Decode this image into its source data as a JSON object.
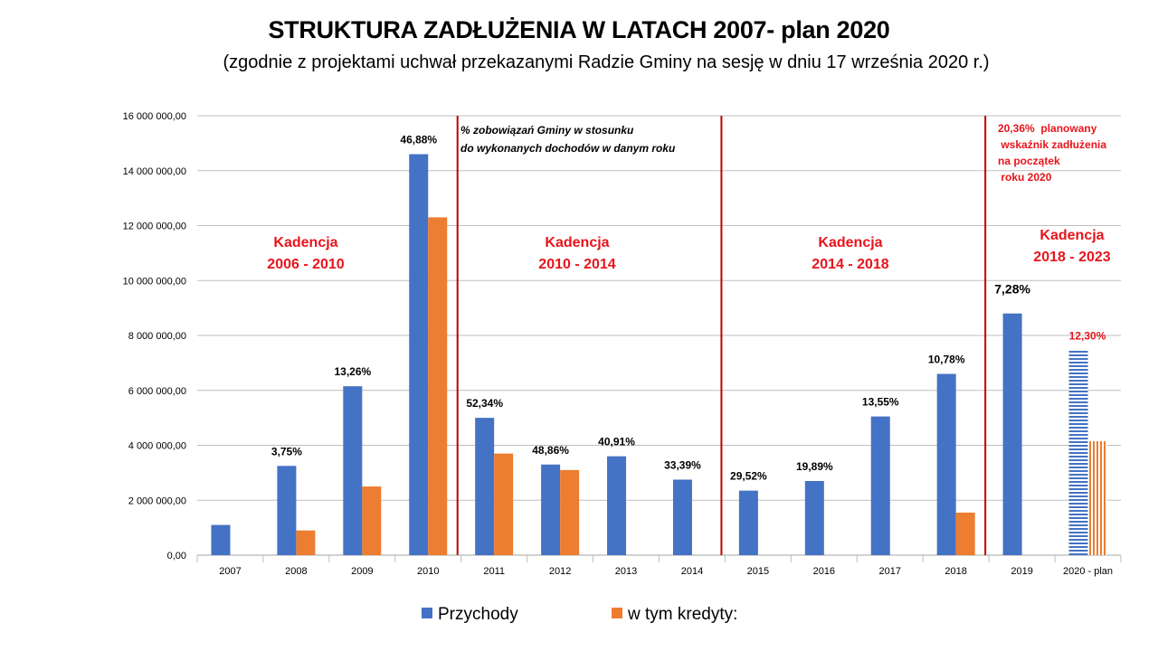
{
  "chart_data": {
    "type": "bar",
    "title": "STRUKTURA ZADŁUŻENIA W LATACH 2007- plan 2020",
    "subtitle": "(zgodnie z projektami uchwał przekazanymi Radzie Gminy na sesję w dniu 17 września 2020 r.)",
    "categories": [
      "2007",
      "2008",
      "2009",
      "2010",
      "2011",
      "2012",
      "2013",
      "2014",
      "2015",
      "2016",
      "2017",
      "2018",
      "2019",
      "2020 - plan"
    ],
    "series": [
      {
        "name": "Przychody",
        "color": "#4472c4",
        "values": [
          1100000,
          3250000,
          6150000,
          14600000,
          5000000,
          3300000,
          3600000,
          2750000,
          2350000,
          2700000,
          5050000,
          6600000,
          8800000,
          7450000
        ]
      },
      {
        "name": "w tym kredyty:",
        "color": "#ed7d31",
        "values": [
          0,
          900000,
          2500000,
          12300000,
          3700000,
          3100000,
          0,
          0,
          0,
          0,
          0,
          1550000,
          0,
          4150000
        ]
      }
    ],
    "data_labels": [
      "",
      "3,75%",
      "13,26%",
      "46,88%",
      "52,34%",
      "48,86%",
      "40,91%",
      "33,39%",
      "29,52%",
      "19,89%",
      "13,55%",
      "10,78%",
      "7,28%",
      "12,30%"
    ],
    "y_ticks": [
      "0,00",
      "2 000 000,00",
      "4 000 000,00",
      "6 000 000,00",
      "8 000 000,00",
      "10 000 000,00",
      "12 000 000,00",
      "14 000 000,00",
      "16 000 000,00"
    ],
    "ylim": [
      0,
      16000000
    ],
    "grid": true,
    "legend": "bottom",
    "dividers_after": [
      "2010",
      "2014",
      "2018"
    ],
    "period_labels": [
      {
        "line1": "Kadencja",
        "line2": "2006 - 2010"
      },
      {
        "line1": "Kadencja",
        "line2": "2010 - 2014"
      },
      {
        "line1": "Kadencja",
        "line2": "2014 - 2018"
      },
      {
        "line1": "Kadencja",
        "line2": "2018 - 2023"
      }
    ],
    "note_percent": [
      "%  zobowiązań  Gminy w stosunku",
      " do wykonanych dochodów   w danym roku"
    ],
    "note_plan": [
      "20,36%  planowany",
      " wskaźnik zadłużenia",
      "na początek",
      " roku 2020"
    ],
    "colors": {
      "divider": "#c00000",
      "annotation": "#e8141b",
      "grid": "#bfbfbf"
    }
  }
}
